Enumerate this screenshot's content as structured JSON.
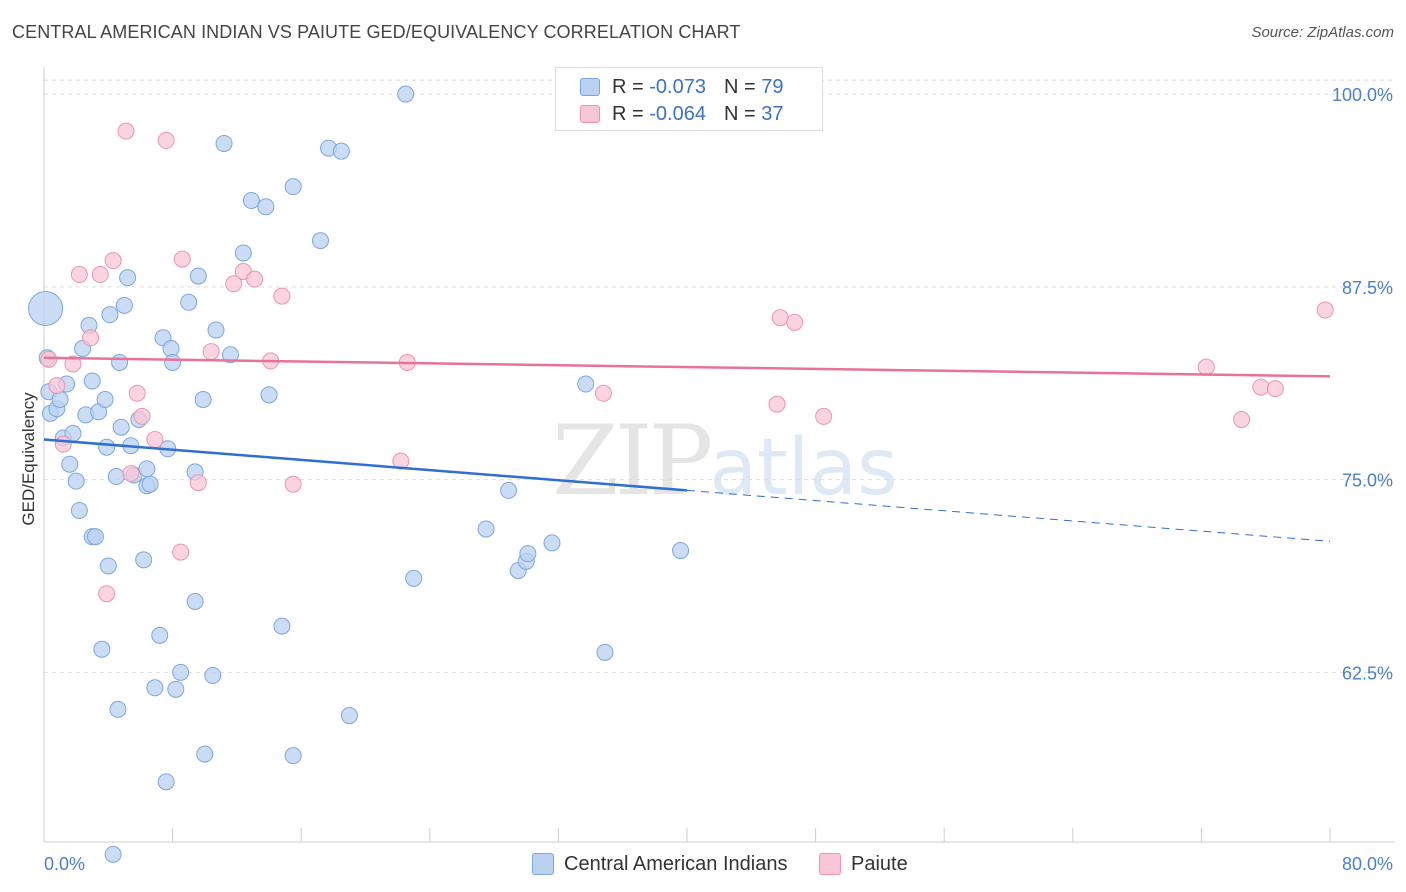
{
  "header": {
    "title": "CENTRAL AMERICAN INDIAN VS PAIUTE GED/EQUIVALENCY CORRELATION CHART",
    "source": "Source: ZipAtlas.com"
  },
  "watermark": {
    "zip": "ZIP",
    "atlas": "atlas"
  },
  "legend": {
    "rows": [
      {
        "r_label": "R = ",
        "r_value": "-0.073",
        "n_label": "N = ",
        "n_value": "79"
      },
      {
        "r_label": "R = ",
        "r_value": "-0.064",
        "n_label": "N = ",
        "n_value": "37"
      }
    ]
  },
  "bottom_legend": {
    "series1": "Central American Indians",
    "series2": "Paiute"
  },
  "colors": {
    "blue_fill": "#b9d2f2",
    "blue_stroke": "#7aa7e0",
    "blue_line": "#2f6fd0",
    "pink_fill": "#f8c6d6",
    "pink_stroke": "#ee93b1",
    "pink_line": "#e8729a",
    "grid": "#dddddd",
    "axis": "#cccccc"
  },
  "chart_data": {
    "type": "scatter",
    "title": "CENTRAL AMERICAN INDIAN VS PAIUTE GED/EQUIVALENCY CORRELATION CHART",
    "xlabel": "",
    "ylabel": "GED/Equivalency",
    "xlim": [
      0,
      80
    ],
    "ylim": [
      51.5,
      101.5
    ],
    "x_tick_labels": [
      "0.0%",
      "80.0%"
    ],
    "y_ticks": [
      62.5,
      75.0,
      87.5,
      100.0
    ],
    "y_tick_labels": [
      "62.5%",
      "75.0%",
      "87.5%",
      "100.0%"
    ],
    "grid": true,
    "legend": "top-center",
    "series": [
      {
        "name": "Central American Indians",
        "R": -0.073,
        "N": 79,
        "trend": {
          "x0": 0,
          "y0": 77.6,
          "x1": 40,
          "y1": 74.3,
          "dashed_to_x": 80,
          "dashed_to_y": 71.0
        },
        "points": [
          [
            0.1,
            86.1
          ],
          [
            0.2,
            82.9
          ],
          [
            0.3,
            80.7
          ],
          [
            0.4,
            79.3
          ],
          [
            0.8,
            79.6
          ],
          [
            1.0,
            80.2
          ],
          [
            1.2,
            77.7
          ],
          [
            1.4,
            81.2
          ],
          [
            1.6,
            76.0
          ],
          [
            1.8,
            78.0
          ],
          [
            2.0,
            74.9
          ],
          [
            2.2,
            73.0
          ],
          [
            2.4,
            83.5
          ],
          [
            2.6,
            79.2
          ],
          [
            2.8,
            85.0
          ],
          [
            3.0,
            71.3
          ],
          [
            3.0,
            81.4
          ],
          [
            3.2,
            71.3
          ],
          [
            3.4,
            79.4
          ],
          [
            3.6,
            64.0
          ],
          [
            3.8,
            80.2
          ],
          [
            3.9,
            77.1
          ],
          [
            4.0,
            69.4
          ],
          [
            4.1,
            85.7
          ],
          [
            4.5,
            75.2
          ],
          [
            4.6,
            60.1
          ],
          [
            4.7,
            82.6
          ],
          [
            4.8,
            78.4
          ],
          [
            5.0,
            86.3
          ],
          [
            5.2,
            88.1
          ],
          [
            5.4,
            77.2
          ],
          [
            5.6,
            75.3
          ],
          [
            5.9,
            78.9
          ],
          [
            6.2,
            69.8
          ],
          [
            6.4,
            75.7
          ],
          [
            6.4,
            74.6
          ],
          [
            6.6,
            74.7
          ],
          [
            6.9,
            61.5
          ],
          [
            7.2,
            64.9
          ],
          [
            7.4,
            84.2
          ],
          [
            7.6,
            55.4
          ],
          [
            7.7,
            77.0
          ],
          [
            7.9,
            83.5
          ],
          [
            8.0,
            82.6
          ],
          [
            8.2,
            61.4
          ],
          [
            8.5,
            62.5
          ],
          [
            9.0,
            86.5
          ],
          [
            9.4,
            67.1
          ],
          [
            9.6,
            88.2
          ],
          [
            9.9,
            80.2
          ],
          [
            10.0,
            57.2
          ],
          [
            10.5,
            62.3
          ],
          [
            10.7,
            84.7
          ],
          [
            11.2,
            96.8
          ],
          [
            11.6,
            83.1
          ],
          [
            12.4,
            89.7
          ],
          [
            12.9,
            93.1
          ],
          [
            13.8,
            92.7
          ],
          [
            14.0,
            80.5
          ],
          [
            14.8,
            65.5
          ],
          [
            15.5,
            57.1
          ],
          [
            15.5,
            94.0
          ],
          [
            17.2,
            90.5
          ],
          [
            17.7,
            96.5
          ],
          [
            18.5,
            96.3
          ],
          [
            19.0,
            59.7
          ],
          [
            22.5,
            100.0
          ],
          [
            23.0,
            68.6
          ],
          [
            27.5,
            71.8
          ],
          [
            28.9,
            74.3
          ],
          [
            29.5,
            69.1
          ],
          [
            30.0,
            69.7
          ],
          [
            30.1,
            70.2
          ],
          [
            31.6,
            70.9
          ],
          [
            33.7,
            81.2
          ],
          [
            34.9,
            63.8
          ],
          [
            39.6,
            70.4
          ],
          [
            4.3,
            50.7
          ],
          [
            9.4,
            75.5
          ]
        ]
      },
      {
        "name": "Paiute",
        "R": -0.064,
        "N": 37,
        "trend": {
          "x0": 0,
          "y0": 82.9,
          "x1": 80,
          "y1": 81.7
        },
        "points": [
          [
            0.3,
            82.8
          ],
          [
            0.8,
            81.1
          ],
          [
            1.2,
            77.3
          ],
          [
            1.8,
            82.5
          ],
          [
            2.2,
            88.3
          ],
          [
            2.9,
            84.2
          ],
          [
            3.5,
            88.3
          ],
          [
            3.9,
            67.6
          ],
          [
            4.3,
            89.2
          ],
          [
            5.1,
            97.6
          ],
          [
            5.4,
            75.4
          ],
          [
            5.8,
            80.6
          ],
          [
            6.1,
            79.1
          ],
          [
            6.9,
            77.6
          ],
          [
            7.6,
            97.0
          ],
          [
            8.5,
            70.3
          ],
          [
            8.6,
            89.3
          ],
          [
            9.6,
            74.8
          ],
          [
            10.4,
            83.3
          ],
          [
            11.8,
            87.7
          ],
          [
            12.4,
            88.5
          ],
          [
            13.1,
            88.0
          ],
          [
            14.1,
            82.7
          ],
          [
            14.8,
            86.9
          ],
          [
            15.5,
            74.7
          ],
          [
            22.2,
            76.2
          ],
          [
            22.6,
            82.6
          ],
          [
            34.8,
            80.6
          ],
          [
            45.6,
            79.9
          ],
          [
            45.8,
            85.5
          ],
          [
            46.7,
            85.2
          ],
          [
            48.5,
            79.1
          ],
          [
            72.3,
            82.3
          ],
          [
            74.5,
            78.9
          ],
          [
            75.7,
            81.0
          ],
          [
            76.6,
            80.9
          ],
          [
            79.7,
            86.0
          ]
        ]
      }
    ]
  }
}
